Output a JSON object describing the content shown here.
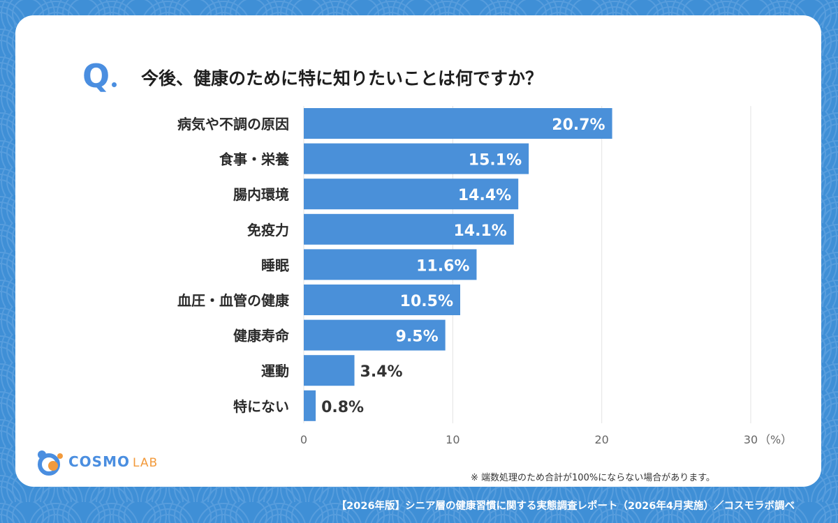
{
  "question": {
    "mark": "Q",
    "text": "今後、健康のために特に知りたいことは何ですか？"
  },
  "chart_data": {
    "type": "bar",
    "orientation": "horizontal",
    "categories": [
      "病気や不調の原因",
      "食事・栄養",
      "腸内環境",
      "免疫力",
      "睡眠",
      "血圧・血管の健康",
      "健康寿命",
      "運動",
      "特にない"
    ],
    "values": [
      20.7,
      15.1,
      14.4,
      14.1,
      11.6,
      10.5,
      9.5,
      3.4,
      0.8
    ],
    "value_labels": [
      "20.7%",
      "15.1%",
      "14.4%",
      "14.1%",
      "11.6%",
      "10.5%",
      "9.5%",
      "3.4%",
      "0.8%"
    ],
    "xlim": [
      0,
      30
    ],
    "xticks": [
      "0",
      "10",
      "20",
      "30"
    ],
    "x_unit": "（%）",
    "bar_color": "#4a90d9",
    "grid": true
  },
  "footnote": "※ 端数処理のため合計が100%にならない場合があります。",
  "logo": {
    "text": "COSMO",
    "sub": "LAB"
  },
  "source": "【2026年版】シニア層の健康習慣に関する実態調査レポート（2026年4月実施）／コスモラボ調べ",
  "colors": {
    "background": "#3f8fd6",
    "accent": "#4a8ee0",
    "logo_orange": "#f29a3b"
  }
}
